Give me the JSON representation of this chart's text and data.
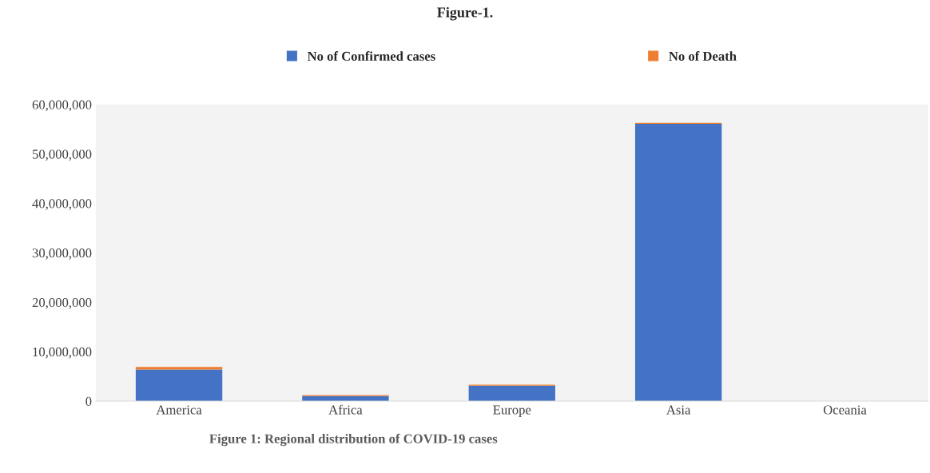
{
  "chart_data": {
    "type": "bar",
    "title": "Figure-1.",
    "stacked": true,
    "categories": [
      "America",
      "Africa",
      "Europe",
      "Asia",
      "Oceania"
    ],
    "series": [
      {
        "name": "No of Confirmed cases",
        "color": "#4472c4",
        "values": [
          6400000,
          1000000,
          3100000,
          56100000,
          null
        ]
      },
      {
        "name": "No of Death",
        "color": "#ed7d31",
        "values": [
          500000,
          200000,
          200000,
          200000,
          null
        ]
      }
    ],
    "ylim": [
      0,
      60000000
    ],
    "yticks": [
      {
        "value": 0,
        "label": "0"
      },
      {
        "value": 10000000,
        "label": "10,000,000"
      },
      {
        "value": 20000000,
        "label": "20,000,000"
      },
      {
        "value": 30000000,
        "label": "30,000,000"
      },
      {
        "value": 40000000,
        "label": "40,000,000"
      },
      {
        "value": 50000000,
        "label": "50,000,000"
      },
      {
        "value": 60000000,
        "label": "60,000,000"
      }
    ],
    "legend": "top",
    "grid": false,
    "annotations": [
      "Figure 1: Regional distribution of COVID-19 cases"
    ]
  }
}
